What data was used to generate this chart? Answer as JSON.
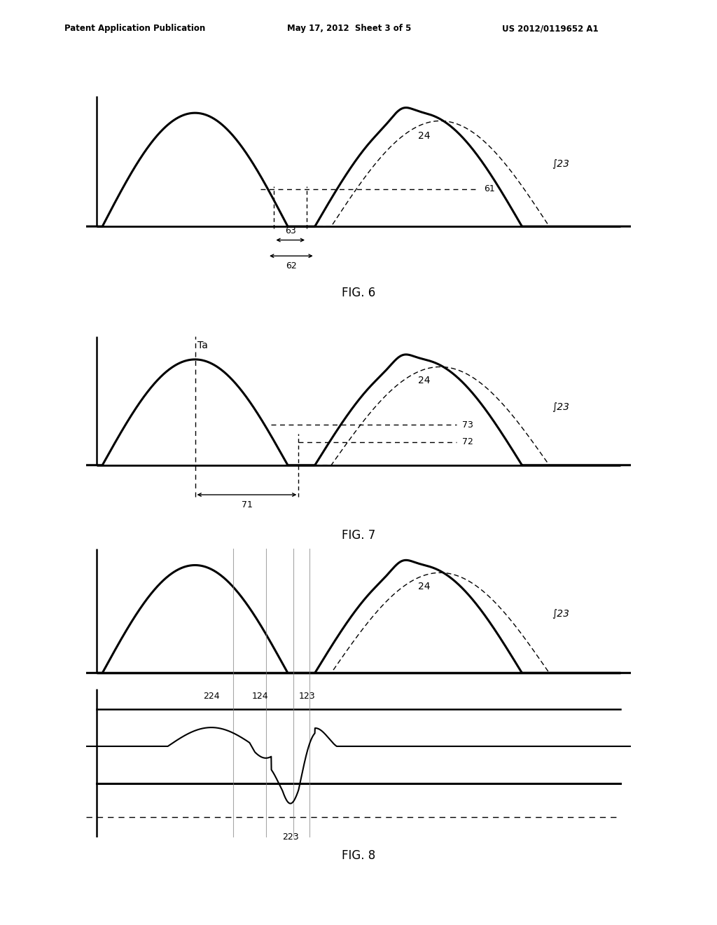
{
  "bg_color": "#ffffff",
  "header_left": "Patent Application Publication",
  "header_mid": "May 17, 2012  Sheet 3 of 5",
  "header_right": "US 2012/0119652 A1",
  "fig6_label": "FIG. 6",
  "fig7_label": "FIG. 7",
  "fig8_label": "FIG. 8",
  "label_23": "23",
  "label_24": "24",
  "label_61": "61",
  "label_62": "62",
  "label_63": "63",
  "label_71": "71",
  "label_72": "72",
  "label_73": "73",
  "label_Ta": "Ta",
  "label_123": "123",
  "label_124": "124",
  "label_223": "223",
  "label_224": "224"
}
